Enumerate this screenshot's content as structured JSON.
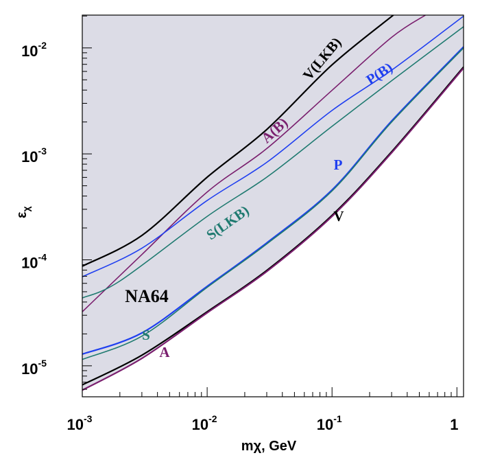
{
  "chart_data": {
    "type": "line",
    "title": "",
    "xlabel": "mχ, GeV",
    "xlabel_main": "m",
    "xlabel_sub": "χ",
    "xlabel_rest": ", GeV",
    "ylabel_main": "ε",
    "ylabel_sub": "χ",
    "xscale": "log",
    "yscale": "log",
    "xlim": [
      0.001,
      1.13
    ],
    "ylim": [
      5.1e-06,
      0.0204
    ],
    "x_ticks": [
      {
        "base": "10",
        "exp": "-3",
        "value": 0.001
      },
      {
        "base": "10",
        "exp": "-2",
        "value": 0.01
      },
      {
        "base": "10",
        "exp": "-1",
        "value": 0.1
      },
      {
        "base": "1",
        "exp": "",
        "value": 1
      }
    ],
    "y_ticks": [
      {
        "base": "10",
        "exp": "-2",
        "value": 0.01
      },
      {
        "base": "10",
        "exp": "-3",
        "value": 0.001
      },
      {
        "base": "10",
        "exp": "-4",
        "value": 0.0001
      },
      {
        "base": "10",
        "exp": "-5",
        "value": 1e-05
      }
    ],
    "annotation": "NA64",
    "excluded_region_color": "#dcdce6",
    "series": [
      {
        "name": "V(LKB)",
        "color": "#000000",
        "x": [
          0.001,
          0.003,
          0.01,
          0.03,
          0.1,
          0.31
        ],
        "log10_y": [
          -4.06,
          -3.77,
          -3.22,
          -2.77,
          -2.16,
          -1.69
        ]
      },
      {
        "name": "A(B)",
        "color": "#7a1f6e",
        "x": [
          0.001,
          0.003,
          0.01,
          0.03,
          0.1,
          0.3,
          0.56
        ],
        "log10_y": [
          -4.49,
          -3.95,
          -3.36,
          -2.95,
          -2.4,
          -1.9,
          -1.69
        ]
      },
      {
        "name": "P(B)",
        "color": "#1f3ff0",
        "x": [
          0.001,
          0.003,
          0.01,
          0.03,
          0.1,
          0.3,
          1.13
        ],
        "log10_y": [
          -4.16,
          -3.89,
          -3.44,
          -3.08,
          -2.59,
          -2.21,
          -1.7
        ]
      },
      {
        "name": "S(LKB)",
        "color": "#1f7a70",
        "x": [
          0.001,
          0.002,
          0.01,
          0.03,
          0.1,
          0.3,
          1.13
        ],
        "log10_y": [
          -4.36,
          -4.2,
          -3.59,
          -3.22,
          -2.74,
          -2.31,
          -1.8
        ]
      },
      {
        "name": "P",
        "color": "#1f3ff0",
        "x": [
          0.001,
          0.003,
          0.01,
          0.03,
          0.1,
          0.3,
          1.13
        ],
        "log10_y": [
          -4.89,
          -4.69,
          -4.25,
          -3.84,
          -3.34,
          -2.69,
          -1.99
        ]
      },
      {
        "name": "S",
        "color": "#1f7a70",
        "x": [
          0.001,
          0.003,
          0.01,
          0.03,
          0.1,
          0.3,
          1.13
        ],
        "log10_y": [
          -4.94,
          -4.72,
          -4.26,
          -3.85,
          -3.35,
          -2.7,
          -2.0
        ]
      },
      {
        "name": "V",
        "color": "#000000",
        "x": [
          0.001,
          0.003,
          0.01,
          0.03,
          0.1,
          0.3,
          1.13
        ],
        "log10_y": [
          -5.18,
          -4.9,
          -4.49,
          -4.1,
          -3.58,
          -2.98,
          -2.18
        ]
      },
      {
        "name": "A",
        "color": "#7a1f6e",
        "x": [
          0.001,
          0.003,
          0.01,
          0.03,
          0.1,
          0.3,
          1.13
        ],
        "log10_y": [
          -5.23,
          -4.93,
          -4.5,
          -4.11,
          -3.59,
          -2.99,
          -2.19
        ]
      }
    ]
  }
}
